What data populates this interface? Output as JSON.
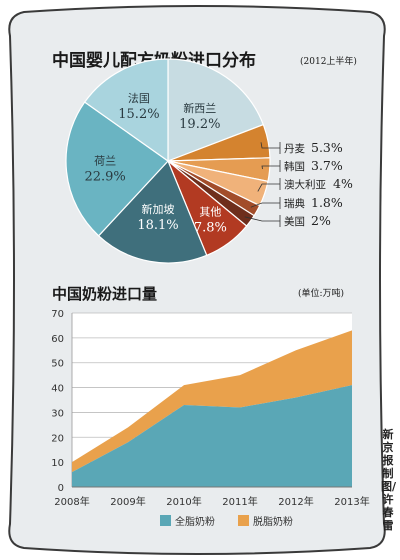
{
  "colors": {
    "frame_fill": "#e9ecee",
    "frame_stroke": "#3a3a3a",
    "title": "#1a1a1a",
    "whole_milk": "#5aa7b6",
    "skim_milk": "#e9a14c"
  },
  "credit": "新京报制图/许春雷",
  "chart_data": [
    {
      "type": "pie",
      "title": "中国婴儿配方奶粉进口分布",
      "subtitle": "(2012上半年)",
      "slices": [
        {
          "name": "新西兰",
          "value": 19.2,
          "label": "19.2%",
          "color": "#c7dce2"
        },
        {
          "name": "丹麦",
          "value": 5.3,
          "label": "5.3%",
          "color": "#d4832f"
        },
        {
          "name": "韩国",
          "value": 3.7,
          "label": "3.7%",
          "color": "#e59c52"
        },
        {
          "name": "澳大利亚",
          "value": 4,
          "label": "4%",
          "color": "#f0b27a"
        },
        {
          "name": "瑞典",
          "value": 1.8,
          "label": "1.8%",
          "color": "#a24d2a"
        },
        {
          "name": "美国",
          "value": 2,
          "label": "2%",
          "color": "#6e2e1c"
        },
        {
          "name": "其他",
          "value": 7.8,
          "label": "7.8%",
          "color": "#b23a22"
        },
        {
          "name": "新加坡",
          "value": 18.1,
          "label": "18.1%",
          "color": "#3f6f7c"
        },
        {
          "name": "荷兰",
          "value": 22.9,
          "label": "22.9%",
          "color": "#6ab4c2"
        },
        {
          "name": "法国",
          "value": 15.2,
          "label": "15.2%",
          "color": "#a9d4de"
        }
      ]
    },
    {
      "type": "area",
      "title": "中国奶粉进口量",
      "unit": "(单位:万吨)",
      "x": [
        "2008年",
        "2009年",
        "2010年",
        "2011年",
        "2012年",
        "2013年"
      ],
      "ylim": [
        0,
        70
      ],
      "yticks": [
        0,
        10,
        20,
        30,
        40,
        50,
        60,
        70
      ],
      "grid": true,
      "legend_position": "bottom",
      "series": [
        {
          "name": "全脂奶粉",
          "values": [
            6,
            18,
            33,
            32,
            36,
            41
          ],
          "color": "#5aa7b6"
        },
        {
          "name": "脱脂奶粉",
          "values": [
            4,
            6,
            8,
            13,
            19,
            22
          ],
          "color": "#e9a14c"
        }
      ]
    }
  ]
}
